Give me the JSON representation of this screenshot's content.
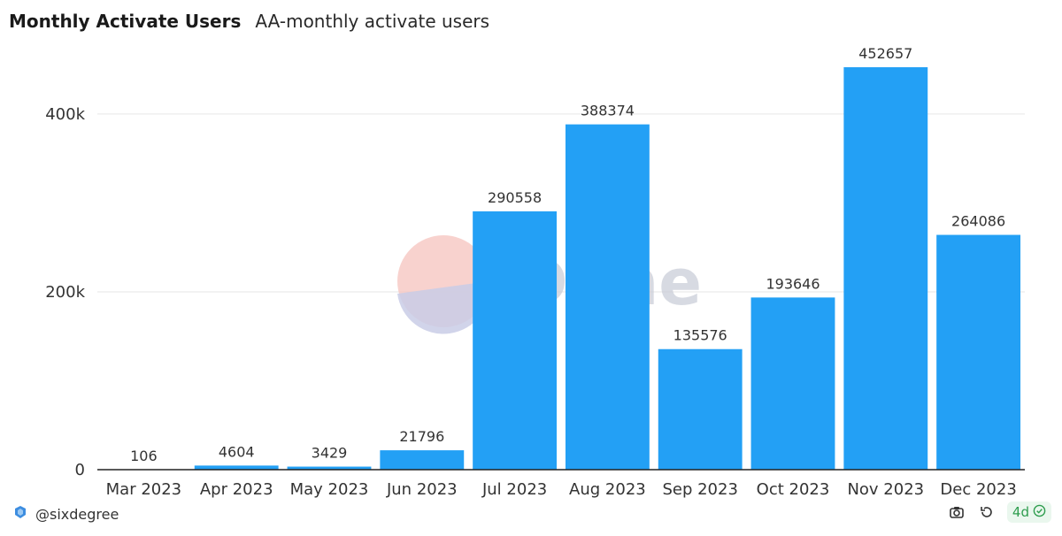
{
  "header": {
    "title": "Monthly Activate Users",
    "subtitle": "AA-monthly activate users"
  },
  "chart_data": {
    "type": "bar",
    "categories": [
      "Mar 2023",
      "Apr 2023",
      "May 2023",
      "Jun 2023",
      "Jul 2023",
      "Aug 2023",
      "Sep 2023",
      "Oct 2023",
      "Nov 2023",
      "Dec 2023"
    ],
    "values": [
      106,
      4604,
      3429,
      21796,
      290558,
      388374,
      135576,
      193646,
      452657,
      264086
    ],
    "data_labels": [
      "106",
      "4604",
      "3429",
      "21796",
      "290558",
      "388374",
      "135576",
      "193646",
      "452657",
      "264086"
    ],
    "y_ticks": [
      0,
      200000,
      400000
    ],
    "y_tick_labels": [
      "0",
      "200k",
      "400k"
    ],
    "ylim": [
      0,
      452657
    ],
    "grid": true,
    "bar_color": "#23a0f5",
    "xlabel": "",
    "ylabel": ""
  },
  "watermark": {
    "text": "Dune"
  },
  "footer": {
    "author": "@sixdegree",
    "age": "4d"
  },
  "colors": {
    "bar": "#23a0f5",
    "grid": "#e6e6e6",
    "badge_text": "#2e9d4e"
  }
}
